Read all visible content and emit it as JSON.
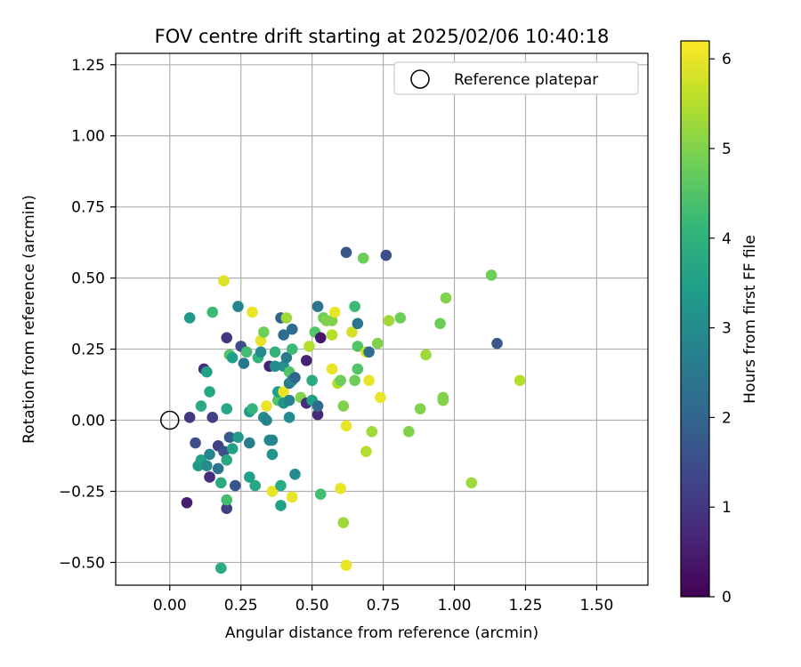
{
  "chart_data": {
    "type": "scatter",
    "title": "FOV centre drift starting at 2025/02/06 10:40:18",
    "xlabel": "Angular distance from reference (arcmin)",
    "ylabel": "Rotation from reference (arcmin)",
    "xlim": [
      -0.19,
      1.68
    ],
    "ylim": [
      -0.58,
      1.29
    ],
    "xticks": [
      "0.00",
      "0.25",
      "0.50",
      "0.75",
      "1.00",
      "1.25",
      "1.50"
    ],
    "xtick_values": [
      0,
      0.25,
      0.5,
      0.75,
      1.0,
      1.25,
      1.5
    ],
    "yticks": [
      "−0.50",
      "−0.25",
      "0.00",
      "0.25",
      "0.50",
      "0.75",
      "1.00",
      "1.25"
    ],
    "ytick_values": [
      -0.5,
      -0.25,
      0,
      0.25,
      0.5,
      0.75,
      1.0,
      1.25
    ],
    "grid": true,
    "legend": {
      "placement": "top-right",
      "entries": [
        "Reference platepar"
      ]
    },
    "reference_point": {
      "x": 0.0,
      "y": 0.0,
      "marker": "open-circle"
    },
    "colorbar": {
      "label": "Hours from first FF file",
      "colormap": "viridis",
      "range": [
        0,
        6.2
      ],
      "ticks": [
        "0",
        "1",
        "2",
        "3",
        "4",
        "5",
        "6"
      ],
      "tick_values": [
        0,
        1,
        2,
        3,
        4,
        5,
        6
      ]
    },
    "colormap_stops": [
      "#440154",
      "#482878",
      "#3e4989",
      "#31688e",
      "#26828e",
      "#1f9e89",
      "#35b779",
      "#6ece58",
      "#b5de2b",
      "#fde725"
    ],
    "points": [
      {
        "x": 0.06,
        "y": -0.29,
        "h": 0.5
      },
      {
        "x": 0.07,
        "y": 0.01,
        "h": 1.0
      },
      {
        "x": 0.07,
        "y": 0.36,
        "h": 3.3
      },
      {
        "x": 0.09,
        "y": -0.08,
        "h": 1.5
      },
      {
        "x": 0.1,
        "y": -0.16,
        "h": 3.3
      },
      {
        "x": 0.11,
        "y": 0.05,
        "h": 3.8
      },
      {
        "x": 0.11,
        "y": -0.14,
        "h": 3.5
      },
      {
        "x": 0.12,
        "y": 0.18,
        "h": 0.8
      },
      {
        "x": 0.13,
        "y": -0.16,
        "h": 3.0
      },
      {
        "x": 0.13,
        "y": 0.17,
        "h": 3.5
      },
      {
        "x": 0.14,
        "y": -0.2,
        "h": 0.8
      },
      {
        "x": 0.14,
        "y": -0.12,
        "h": 2.8
      },
      {
        "x": 0.14,
        "y": 0.1,
        "h": 3.7
      },
      {
        "x": 0.15,
        "y": 0.01,
        "h": 1.2
      },
      {
        "x": 0.15,
        "y": 0.38,
        "h": 4.2
      },
      {
        "x": 0.17,
        "y": -0.09,
        "h": 1.2
      },
      {
        "x": 0.17,
        "y": -0.17,
        "h": 2.4
      },
      {
        "x": 0.18,
        "y": -0.22,
        "h": 3.8
      },
      {
        "x": 0.18,
        "y": -0.52,
        "h": 3.8
      },
      {
        "x": 0.19,
        "y": 0.49,
        "h": 5.9
      },
      {
        "x": 0.19,
        "y": -0.11,
        "h": 1.5
      },
      {
        "x": 0.2,
        "y": -0.31,
        "h": 1.2
      },
      {
        "x": 0.2,
        "y": -0.28,
        "h": 4.3
      },
      {
        "x": 0.2,
        "y": 0.04,
        "h": 3.7
      },
      {
        "x": 0.2,
        "y": 0.29,
        "h": 1.0
      },
      {
        "x": 0.2,
        "y": -0.14,
        "h": 3.7
      },
      {
        "x": 0.21,
        "y": 0.23,
        "h": 4.5
      },
      {
        "x": 0.21,
        "y": -0.06,
        "h": 1.8
      },
      {
        "x": 0.22,
        "y": 0.22,
        "h": 3.5
      },
      {
        "x": 0.22,
        "y": -0.1,
        "h": 3.5
      },
      {
        "x": 0.23,
        "y": -0.23,
        "h": 1.6
      },
      {
        "x": 0.24,
        "y": 0.4,
        "h": 2.8
      },
      {
        "x": 0.24,
        "y": -0.06,
        "h": 3.3
      },
      {
        "x": 0.25,
        "y": 0.26,
        "h": 1.5
      },
      {
        "x": 0.26,
        "y": 0.2,
        "h": 2.5
      },
      {
        "x": 0.27,
        "y": 0.24,
        "h": 4.3
      },
      {
        "x": 0.28,
        "y": -0.08,
        "h": 2.6
      },
      {
        "x": 0.28,
        "y": 0.03,
        "h": 3.3
      },
      {
        "x": 0.28,
        "y": -0.2,
        "h": 3.5
      },
      {
        "x": 0.29,
        "y": 0.38,
        "h": 6.0
      },
      {
        "x": 0.29,
        "y": 0.04,
        "h": 4.1
      },
      {
        "x": 0.3,
        "y": -0.23,
        "h": 3.7
      },
      {
        "x": 0.31,
        "y": 0.22,
        "h": 4.0
      },
      {
        "x": 0.32,
        "y": 0.28,
        "h": 6.0
      },
      {
        "x": 0.32,
        "y": 0.24,
        "h": 3.0
      },
      {
        "x": 0.33,
        "y": 0.31,
        "h": 4.8
      },
      {
        "x": 0.33,
        "y": 0.01,
        "h": 3.0
      },
      {
        "x": 0.34,
        "y": 0.05,
        "h": 6.0
      },
      {
        "x": 0.34,
        "y": 0.0,
        "h": 2.8
      },
      {
        "x": 0.35,
        "y": -0.07,
        "h": 3.0
      },
      {
        "x": 0.35,
        "y": 0.19,
        "h": 0.6
      },
      {
        "x": 0.36,
        "y": -0.25,
        "h": 6.0
      },
      {
        "x": 0.36,
        "y": -0.07,
        "h": 2.8
      },
      {
        "x": 0.36,
        "y": -0.12,
        "h": 3.2
      },
      {
        "x": 0.37,
        "y": 0.24,
        "h": 4.0
      },
      {
        "x": 0.37,
        "y": 0.19,
        "h": 3.0
      },
      {
        "x": 0.38,
        "y": 0.07,
        "h": 4.5
      },
      {
        "x": 0.38,
        "y": 0.1,
        "h": 3.5
      },
      {
        "x": 0.39,
        "y": -0.23,
        "h": 3.8
      },
      {
        "x": 0.39,
        "y": -0.3,
        "h": 3.5
      },
      {
        "x": 0.39,
        "y": 0.36,
        "h": 2.0
      },
      {
        "x": 0.4,
        "y": 0.3,
        "h": 2.2
      },
      {
        "x": 0.4,
        "y": 0.06,
        "h": 3.2
      },
      {
        "x": 0.4,
        "y": 0.1,
        "h": 6.0
      },
      {
        "x": 0.4,
        "y": 0.19,
        "h": 3.1
      },
      {
        "x": 0.41,
        "y": 0.36,
        "h": 5.3
      },
      {
        "x": 0.41,
        "y": 0.22,
        "h": 2.5
      },
      {
        "x": 0.42,
        "y": 0.07,
        "h": 2.8
      },
      {
        "x": 0.42,
        "y": 0.13,
        "h": 2.5
      },
      {
        "x": 0.42,
        "y": 0.01,
        "h": 3.0
      },
      {
        "x": 0.42,
        "y": 0.17,
        "h": 4.5
      },
      {
        "x": 0.43,
        "y": -0.27,
        "h": 6.0
      },
      {
        "x": 0.43,
        "y": 0.32,
        "h": 2.2
      },
      {
        "x": 0.43,
        "y": 0.25,
        "h": 4.2
      },
      {
        "x": 0.43,
        "y": 0.14,
        "h": 2.8
      },
      {
        "x": 0.44,
        "y": -0.19,
        "h": 3.0
      },
      {
        "x": 0.44,
        "y": 0.15,
        "h": 2.0
      },
      {
        "x": 0.46,
        "y": 0.08,
        "h": 5.0
      },
      {
        "x": 0.48,
        "y": 0.21,
        "h": 0.6
      },
      {
        "x": 0.48,
        "y": 0.06,
        "h": 0.8
      },
      {
        "x": 0.49,
        "y": 0.26,
        "h": 5.5
      },
      {
        "x": 0.5,
        "y": 0.07,
        "h": 3.5
      },
      {
        "x": 0.5,
        "y": 0.14,
        "h": 3.8
      },
      {
        "x": 0.51,
        "y": 0.31,
        "h": 4.5
      },
      {
        "x": 0.52,
        "y": 0.4,
        "h": 2.4
      },
      {
        "x": 0.52,
        "y": 0.02,
        "h": 0.7
      },
      {
        "x": 0.52,
        "y": 0.05,
        "h": 2.2
      },
      {
        "x": 0.53,
        "y": -0.26,
        "h": 4.3
      },
      {
        "x": 0.53,
        "y": 0.29,
        "h": 0.4
      },
      {
        "x": 0.54,
        "y": 0.36,
        "h": 4.8
      },
      {
        "x": 0.55,
        "y": 0.35,
        "h": 5.0
      },
      {
        "x": 0.57,
        "y": 0.18,
        "h": 6.0
      },
      {
        "x": 0.57,
        "y": 0.3,
        "h": 5.5
      },
      {
        "x": 0.57,
        "y": 0.35,
        "h": 5.0
      },
      {
        "x": 0.58,
        "y": 0.38,
        "h": 6.0
      },
      {
        "x": 0.59,
        "y": 0.13,
        "h": 5.5
      },
      {
        "x": 0.6,
        "y": 0.14,
        "h": 4.8
      },
      {
        "x": 0.6,
        "y": -0.24,
        "h": 6.0
      },
      {
        "x": 0.61,
        "y": -0.36,
        "h": 5.3
      },
      {
        "x": 0.61,
        "y": 0.05,
        "h": 5.0
      },
      {
        "x": 0.62,
        "y": 0.59,
        "h": 1.7
      },
      {
        "x": 0.62,
        "y": -0.02,
        "h": 6.0
      },
      {
        "x": 0.62,
        "y": -0.51,
        "h": 6.0
      },
      {
        "x": 0.64,
        "y": 0.31,
        "h": 5.8
      },
      {
        "x": 0.65,
        "y": 0.4,
        "h": 4.2
      },
      {
        "x": 0.65,
        "y": 0.14,
        "h": 4.8
      },
      {
        "x": 0.66,
        "y": 0.34,
        "h": 2.4
      },
      {
        "x": 0.66,
        "y": 0.26,
        "h": 4.5
      },
      {
        "x": 0.66,
        "y": 0.18,
        "h": 4.5
      },
      {
        "x": 0.68,
        "y": 0.57,
        "h": 4.8
      },
      {
        "x": 0.69,
        "y": -0.11,
        "h": 5.5
      },
      {
        "x": 0.69,
        "y": 0.24,
        "h": 5.8
      },
      {
        "x": 0.7,
        "y": 0.24,
        "h": 2.2
      },
      {
        "x": 0.7,
        "y": 0.14,
        "h": 6.0
      },
      {
        "x": 0.71,
        "y": -0.04,
        "h": 5.3
      },
      {
        "x": 0.73,
        "y": 0.27,
        "h": 5.0
      },
      {
        "x": 0.74,
        "y": 0.08,
        "h": 6.0
      },
      {
        "x": 0.76,
        "y": 0.58,
        "h": 1.5
      },
      {
        "x": 0.77,
        "y": 0.35,
        "h": 5.3
      },
      {
        "x": 0.81,
        "y": 0.36,
        "h": 4.8
      },
      {
        "x": 0.84,
        "y": -0.04,
        "h": 5.0
      },
      {
        "x": 0.88,
        "y": 0.04,
        "h": 5.0
      },
      {
        "x": 0.9,
        "y": 0.23,
        "h": 5.3
      },
      {
        "x": 0.95,
        "y": 0.34,
        "h": 4.8
      },
      {
        "x": 0.96,
        "y": 0.08,
        "h": 5.0
      },
      {
        "x": 0.96,
        "y": 0.07,
        "h": 5.0
      },
      {
        "x": 0.97,
        "y": 0.43,
        "h": 5.0
      },
      {
        "x": 1.06,
        "y": -0.22,
        "h": 5.3
      },
      {
        "x": 1.13,
        "y": 0.51,
        "h": 4.8
      },
      {
        "x": 1.15,
        "y": 0.27,
        "h": 1.7
      },
      {
        "x": 1.23,
        "y": 0.14,
        "h": 5.5
      }
    ]
  }
}
